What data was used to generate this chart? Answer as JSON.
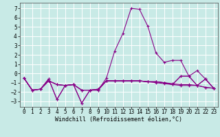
{
  "xlabel": "Windchill (Refroidissement éolien,°C)",
  "ylabel": "",
  "background_color": "#c8eae6",
  "grid_color": "#ffffff",
  "line_color": "#880088",
  "xlim": [
    -0.5,
    23.5
  ],
  "ylim": [
    -3.6,
    7.6
  ],
  "yticks": [
    -3,
    -2,
    -1,
    0,
    1,
    2,
    3,
    4,
    5,
    6,
    7
  ],
  "xticks": [
    0,
    1,
    2,
    3,
    4,
    5,
    6,
    7,
    8,
    9,
    10,
    11,
    12,
    13,
    14,
    15,
    16,
    17,
    18,
    19,
    20,
    21,
    22,
    23
  ],
  "series": [
    [
      -0.5,
      -1.8,
      -1.7,
      -0.6,
      -2.8,
      -1.3,
      -1.2,
      -3.2,
      -1.8,
      -1.8,
      -0.5,
      2.4,
      4.3,
      7.0,
      6.9,
      5.1,
      2.2,
      1.2,
      1.4,
      1.4,
      -0.3,
      0.3,
      -0.6,
      -1.6
    ],
    [
      -0.5,
      -1.8,
      -1.7,
      -0.6,
      -2.8,
      -1.3,
      -1.2,
      -3.2,
      -1.8,
      -1.8,
      -0.8,
      -0.8,
      -0.8,
      -0.8,
      -0.8,
      -0.9,
      -1.0,
      -1.1,
      -1.2,
      -1.3,
      -1.3,
      -1.3,
      -1.5,
      -1.6
    ],
    [
      -0.5,
      -1.8,
      -1.7,
      -0.8,
      -1.2,
      -1.3,
      -1.2,
      -1.8,
      -1.8,
      -1.7,
      -0.8,
      -0.8,
      -0.8,
      -0.8,
      -0.8,
      -0.9,
      -0.9,
      -1.0,
      -1.1,
      -1.2,
      -1.2,
      -1.3,
      -1.5,
      -1.6
    ],
    [
      -0.5,
      -1.8,
      -1.7,
      -0.8,
      -1.2,
      -1.3,
      -1.2,
      -1.8,
      -1.8,
      -1.7,
      -0.8,
      -0.8,
      -0.8,
      -0.8,
      -0.8,
      -0.9,
      -0.9,
      -1.0,
      -1.2,
      -0.3,
      -0.3,
      -1.3,
      -0.6,
      -1.6
    ],
    [
      -0.5,
      -1.8,
      -1.7,
      -0.8,
      -1.2,
      -1.3,
      -1.2,
      -1.8,
      -1.8,
      -1.7,
      -0.8,
      -0.8,
      -0.8,
      -0.8,
      -0.8,
      -0.9,
      -0.9,
      -1.0,
      -1.2,
      -0.3,
      -0.3,
      -1.3,
      -0.6,
      -1.6
    ]
  ],
  "marker": "+",
  "markersize": 3,
  "linewidth": 0.8,
  "tick_fontsize": 5.5,
  "label_fontsize": 6.0
}
